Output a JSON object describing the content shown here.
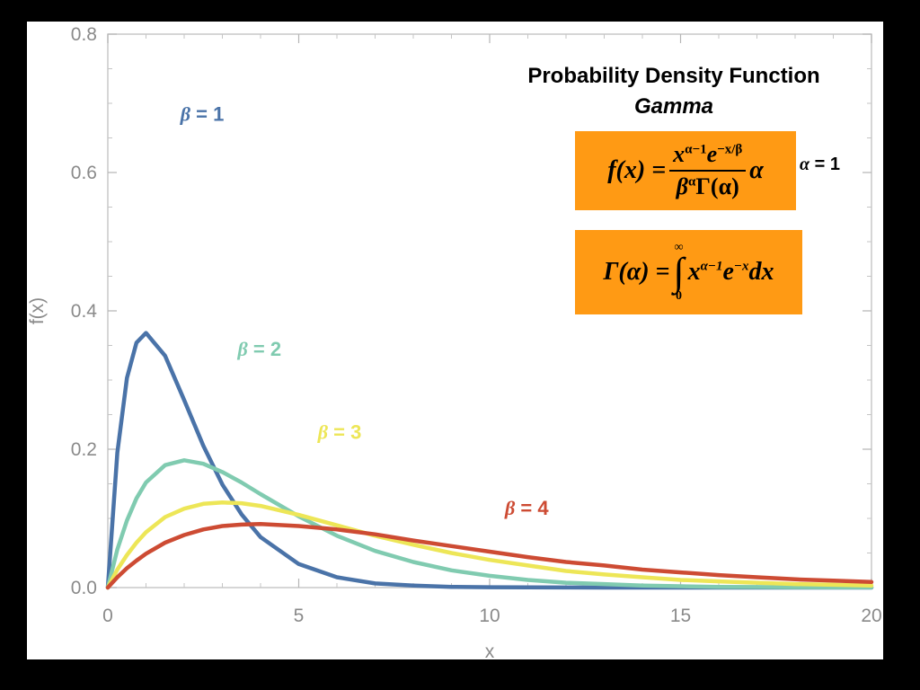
{
  "title": {
    "line1": "Probability Density Function",
    "line2": "Gamma"
  },
  "formula_pdf": {
    "lhs": "f(x) =",
    "numerator_base": "x",
    "numerator_exp": "α−1",
    "numerator_e": "e",
    "numerator_e_exp": "−x/β",
    "denominator": "β",
    "denominator_exp": "α",
    "denominator_gamma": "Γ(α)",
    "trailing": "α"
  },
  "alpha_note": {
    "symbol": "α",
    "text": " = 1"
  },
  "formula_gamma": {
    "lhs": "Γ(α) =",
    "upper_limit": "∞",
    "integral_sign": "∫",
    "lower_limit": "0",
    "body_base": "x",
    "body_exp": "α−1",
    "body_e": "e",
    "body_e_exp": "−x",
    "dx": "dx"
  },
  "chart_data": {
    "type": "line",
    "title": "Probability Density Function Gamma",
    "xlabel": "x",
    "ylabel": "f(x)",
    "xlim": [
      0,
      20
    ],
    "ylim": [
      0,
      0.8
    ],
    "x_ticks": [
      "0",
      "5",
      "10",
      "15",
      "20"
    ],
    "y_ticks": [
      "0.0",
      "0.2",
      "0.4",
      "0.6",
      "0.8"
    ],
    "grid": false,
    "alpha": 1,
    "x": [
      0,
      0.25,
      0.5,
      0.75,
      1,
      1.5,
      2,
      2.5,
      3,
      3.5,
      4,
      5,
      6,
      7,
      8,
      9,
      10,
      11,
      12,
      13,
      14,
      15,
      16,
      17,
      18,
      19,
      20
    ],
    "series": [
      {
        "name": "β = 1",
        "label_symbol": "β",
        "label_text": " = 1",
        "color": "#4a73a8",
        "values": [
          0,
          0.195,
          0.303,
          0.354,
          0.368,
          0.335,
          0.271,
          0.205,
          0.149,
          0.106,
          0.073,
          0.034,
          0.015,
          0.006,
          0.003,
          0.001,
          0.0005,
          0.0002,
          0.0001,
          0,
          0,
          0,
          0,
          0,
          0,
          0,
          0
        ]
      },
      {
        "name": "β = 2",
        "label_symbol": "β",
        "label_text": " = 2",
        "color": "#80cbb0",
        "values": [
          0,
          0.055,
          0.097,
          0.129,
          0.152,
          0.177,
          0.184,
          0.179,
          0.167,
          0.152,
          0.135,
          0.103,
          0.075,
          0.053,
          0.037,
          0.025,
          0.017,
          0.011,
          0.007,
          0.005,
          0.003,
          0.002,
          0.001,
          0.0008,
          0.0005,
          0.0003,
          0.0002
        ]
      },
      {
        "name": "β = 3",
        "label_symbol": "β",
        "label_text": " = 3",
        "color": "#ede657",
        "values": [
          0,
          0.026,
          0.047,
          0.065,
          0.08,
          0.102,
          0.114,
          0.121,
          0.123,
          0.122,
          0.118,
          0.105,
          0.09,
          0.075,
          0.062,
          0.05,
          0.04,
          0.032,
          0.024,
          0.019,
          0.015,
          0.011,
          0.009,
          0.007,
          0.005,
          0.004,
          0.003
        ]
      },
      {
        "name": "β = 4",
        "label_symbol": "β",
        "label_text": " = 4",
        "color": "#cd4b33",
        "values": [
          0,
          0.015,
          0.028,
          0.039,
          0.049,
          0.065,
          0.076,
          0.084,
          0.089,
          0.091,
          0.092,
          0.089,
          0.084,
          0.077,
          0.068,
          0.06,
          0.052,
          0.044,
          0.037,
          0.032,
          0.026,
          0.022,
          0.018,
          0.015,
          0.012,
          0.01,
          0.008
        ]
      }
    ]
  }
}
